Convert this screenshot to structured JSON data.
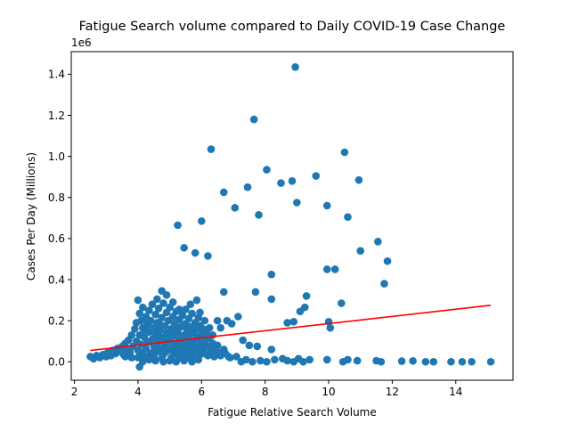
{
  "chart_data": {
    "type": "scatter",
    "title": "Fatigue Search volume compared to Daily COVID-19 Case Change",
    "xlabel": "Fatigue Relative Search Volume",
    "ylabel": "Cases Per Day (Millions)",
    "y_offset_label": "1e6",
    "xlim": [
      1.9,
      15.8
    ],
    "ylim": [
      -0.09,
      1.51
    ],
    "x_ticks": [
      2,
      4,
      6,
      8,
      10,
      12,
      14
    ],
    "x_tick_labels": [
      "2",
      "4",
      "6",
      "8",
      "10",
      "12",
      "14"
    ],
    "y_ticks": [
      0.0,
      0.2,
      0.4,
      0.6,
      0.8,
      1.0,
      1.2,
      1.4
    ],
    "y_tick_labels": [
      "0.0",
      "0.2",
      "0.4",
      "0.6",
      "0.8",
      "1.0",
      "1.2",
      "1.4"
    ],
    "grid": false,
    "legend": "none",
    "colors": {
      "points": "#1f77b4",
      "trend": "#ff0000",
      "axes": "#000000"
    },
    "trend_line": {
      "x": [
        2.5,
        15.1
      ],
      "y": [
        0.055,
        0.275
      ]
    },
    "points": [
      [
        8.95,
        1.435
      ],
      [
        7.65,
        1.18
      ],
      [
        6.3,
        1.035
      ],
      [
        10.5,
        1.02
      ],
      [
        8.05,
        0.935
      ],
      [
        9.6,
        0.905
      ],
      [
        10.95,
        0.885
      ],
      [
        8.5,
        0.87
      ],
      [
        8.85,
        0.88
      ],
      [
        7.45,
        0.85
      ],
      [
        6.7,
        0.825
      ],
      [
        9.0,
        0.775
      ],
      [
        7.05,
        0.75
      ],
      [
        9.95,
        0.76
      ],
      [
        7.8,
        0.715
      ],
      [
        10.6,
        0.705
      ],
      [
        6.0,
        0.685
      ],
      [
        5.25,
        0.665
      ],
      [
        11.55,
        0.585
      ],
      [
        5.45,
        0.555
      ],
      [
        11.0,
        0.54
      ],
      [
        5.8,
        0.53
      ],
      [
        6.2,
        0.515
      ],
      [
        11.85,
        0.49
      ],
      [
        9.95,
        0.45
      ],
      [
        10.2,
        0.45
      ],
      [
        8.2,
        0.425
      ],
      [
        11.75,
        0.38
      ],
      [
        9.3,
        0.32
      ],
      [
        6.7,
        0.34
      ],
      [
        7.7,
        0.34
      ],
      [
        8.2,
        0.305
      ],
      [
        10.4,
        0.285
      ],
      [
        9.1,
        0.245
      ],
      [
        9.25,
        0.265
      ],
      [
        8.9,
        0.195
      ],
      [
        8.7,
        0.19
      ],
      [
        10.0,
        0.195
      ],
      [
        10.05,
        0.165
      ],
      [
        7.15,
        0.22
      ],
      [
        6.8,
        0.2
      ],
      [
        6.95,
        0.185
      ],
      [
        7.3,
        0.105
      ],
      [
        7.5,
        0.08
      ],
      [
        7.75,
        0.075
      ],
      [
        8.2,
        0.06
      ],
      [
        11.5,
        0.005
      ],
      [
        11.65,
        0.0
      ],
      [
        12.3,
        0.003
      ],
      [
        12.65,
        0.004
      ],
      [
        13.05,
        0.0
      ],
      [
        13.3,
        0.0
      ],
      [
        13.85,
        0.0
      ],
      [
        14.2,
        0.0
      ],
      [
        14.5,
        0.0
      ],
      [
        15.1,
        0.0
      ],
      [
        10.9,
        0.005
      ],
      [
        10.6,
        0.01
      ],
      [
        10.45,
        0.0
      ],
      [
        9.95,
        0.01
      ],
      [
        9.4,
        0.01
      ],
      [
        9.2,
        0.0
      ],
      [
        9.05,
        0.015
      ],
      [
        8.9,
        0.0
      ],
      [
        8.7,
        0.005
      ],
      [
        8.55,
        0.015
      ],
      [
        8.3,
        0.01
      ],
      [
        8.05,
        0.0
      ],
      [
        7.85,
        0.005
      ],
      [
        7.6,
        0.0
      ],
      [
        7.4,
        0.01
      ],
      [
        7.25,
        0.0
      ],
      [
        7.1,
        0.025
      ],
      [
        6.9,
        0.02
      ],
      [
        6.6,
        0.03
      ],
      [
        6.4,
        0.025
      ],
      [
        6.2,
        0.03
      ],
      [
        5.95,
        0.035
      ],
      [
        5.7,
        0.04
      ],
      [
        5.5,
        0.03
      ],
      [
        4.0,
        0.3
      ],
      [
        4.6,
        0.305
      ],
      [
        4.75,
        0.345
      ],
      [
        4.9,
        0.325
      ],
      [
        5.1,
        0.29
      ],
      [
        5.3,
        0.255
      ],
      [
        5.5,
        0.255
      ],
      [
        5.65,
        0.28
      ],
      [
        5.85,
        0.3
      ],
      [
        5.95,
        0.24
      ],
      [
        6.1,
        0.2
      ],
      [
        6.25,
        0.165
      ],
      [
        6.5,
        0.2
      ],
      [
        6.6,
        0.165
      ],
      [
        6.35,
        0.13
      ],
      [
        6.15,
        0.11
      ],
      [
        6.5,
        0.08
      ],
      [
        6.7,
        0.06
      ],
      [
        4.05,
        -0.025
      ],
      [
        4.15,
        0.0
      ],
      [
        4.35,
        0.01
      ],
      [
        4.55,
        0.005
      ],
      [
        4.8,
        0.0
      ],
      [
        5.0,
        0.005
      ],
      [
        5.2,
        0.0
      ],
      [
        5.45,
        0.005
      ],
      [
        5.7,
        0.0
      ],
      [
        5.9,
        0.01
      ],
      [
        2.5,
        0.025
      ],
      [
        2.6,
        0.015
      ],
      [
        2.7,
        0.03
      ],
      [
        2.8,
        0.02
      ],
      [
        2.9,
        0.035
      ],
      [
        3.0,
        0.025
      ],
      [
        3.05,
        0.045
      ],
      [
        3.15,
        0.03
      ],
      [
        3.2,
        0.055
      ],
      [
        3.3,
        0.04
      ],
      [
        3.35,
        0.065
      ],
      [
        3.45,
        0.05
      ],
      [
        3.5,
        0.075
      ],
      [
        3.55,
        0.035
      ],
      [
        3.6,
        0.09
      ],
      [
        3.65,
        0.06
      ],
      [
        3.7,
        0.105
      ],
      [
        3.75,
        0.045
      ],
      [
        3.8,
        0.13
      ],
      [
        3.85,
        0.075
      ],
      [
        3.9,
        0.16
      ],
      [
        3.95,
        0.1
      ],
      [
        3.95,
        0.19
      ],
      [
        4.0,
        0.055
      ],
      [
        4.05,
        0.235
      ],
      [
        4.05,
        0.13
      ],
      [
        4.1,
        0.2
      ],
      [
        4.1,
        0.085
      ],
      [
        4.15,
        0.265
      ],
      [
        4.15,
        0.165
      ],
      [
        4.2,
        0.03
      ],
      [
        4.2,
        0.12
      ],
      [
        4.25,
        0.22
      ],
      [
        4.25,
        0.065
      ],
      [
        4.3,
        0.18
      ],
      [
        4.3,
        0.095
      ],
      [
        4.35,
        0.25
      ],
      [
        4.35,
        0.145
      ],
      [
        4.4,
        0.04
      ],
      [
        4.4,
        0.2
      ],
      [
        4.45,
        0.11
      ],
      [
        4.45,
        0.28
      ],
      [
        4.5,
        0.165
      ],
      [
        4.5,
        0.075
      ],
      [
        4.55,
        0.23
      ],
      [
        4.55,
        0.13
      ],
      [
        4.6,
        0.05
      ],
      [
        4.6,
        0.19
      ],
      [
        4.65,
        0.1
      ],
      [
        4.65,
        0.26
      ],
      [
        4.7,
        0.155
      ],
      [
        4.7,
        0.065
      ],
      [
        4.75,
        0.215
      ],
      [
        4.75,
        0.12
      ],
      [
        4.8,
        0.035
      ],
      [
        4.8,
        0.285
      ],
      [
        4.85,
        0.175
      ],
      [
        4.85,
        0.085
      ],
      [
        4.9,
        0.24
      ],
      [
        4.9,
        0.14
      ],
      [
        4.95,
        0.055
      ],
      [
        4.95,
        0.2
      ],
      [
        5.0,
        0.105
      ],
      [
        5.0,
        0.265
      ],
      [
        5.05,
        0.16
      ],
      [
        5.05,
        0.07
      ],
      [
        5.1,
        0.22
      ],
      [
        5.1,
        0.125
      ],
      [
        5.15,
        0.04
      ],
      [
        5.15,
        0.185
      ],
      [
        5.2,
        0.09
      ],
      [
        5.2,
        0.245
      ],
      [
        5.25,
        0.145
      ],
      [
        5.25,
        0.06
      ],
      [
        5.3,
        0.205
      ],
      [
        5.3,
        0.11
      ],
      [
        5.35,
        0.03
      ],
      [
        5.35,
        0.17
      ],
      [
        5.4,
        0.08
      ],
      [
        5.4,
        0.225
      ],
      [
        5.45,
        0.13
      ],
      [
        5.45,
        0.05
      ],
      [
        5.5,
        0.185
      ],
      [
        5.5,
        0.1
      ],
      [
        5.55,
        0.155
      ],
      [
        5.55,
        0.065
      ],
      [
        5.6,
        0.21
      ],
      [
        5.6,
        0.12
      ],
      [
        5.65,
        0.04
      ],
      [
        5.65,
        0.17
      ],
      [
        5.7,
        0.09
      ],
      [
        5.7,
        0.235
      ],
      [
        5.75,
        0.14
      ],
      [
        5.75,
        0.055
      ],
      [
        5.8,
        0.19
      ],
      [
        5.8,
        0.105
      ],
      [
        5.85,
        0.16
      ],
      [
        5.85,
        0.07
      ],
      [
        5.9,
        0.215
      ],
      [
        5.9,
        0.12
      ],
      [
        5.95,
        0.045
      ],
      [
        5.95,
        0.175
      ],
      [
        6.0,
        0.09
      ],
      [
        6.0,
        0.135
      ],
      [
        6.05,
        0.06
      ],
      [
        6.05,
        0.16
      ],
      [
        6.1,
        0.1
      ],
      [
        6.1,
        0.04
      ],
      [
        6.15,
        0.145
      ],
      [
        6.2,
        0.075
      ],
      [
        6.25,
        0.12
      ],
      [
        6.3,
        0.05
      ],
      [
        6.35,
        0.09
      ],
      [
        6.4,
        0.06
      ],
      [
        6.45,
        0.035
      ],
      [
        6.55,
        0.045
      ],
      [
        6.75,
        0.04
      ],
      [
        6.85,
        0.025
      ],
      [
        3.6,
        0.025
      ],
      [
        3.8,
        0.02
      ],
      [
        4.0,
        0.02
      ],
      [
        4.25,
        0.02
      ],
      [
        4.5,
        0.025
      ],
      [
        4.75,
        0.02
      ],
      [
        5.05,
        0.02
      ],
      [
        5.3,
        0.02
      ],
      [
        5.6,
        0.02
      ],
      [
        5.85,
        0.02
      ],
      [
        4.1,
        0.045
      ],
      [
        4.45,
        0.045
      ],
      [
        4.85,
        0.045
      ],
      [
        5.25,
        0.04
      ],
      [
        5.65,
        0.03
      ],
      [
        4.2,
        0.15
      ],
      [
        4.6,
        0.14
      ],
      [
        4.95,
        0.13
      ],
      [
        5.35,
        0.12
      ],
      [
        4.3,
        0.2
      ],
      [
        4.7,
        0.18
      ],
      [
        5.15,
        0.16
      ],
      [
        5.55,
        0.14
      ],
      [
        4.4,
        0.1
      ],
      [
        4.8,
        0.1
      ],
      [
        5.2,
        0.09
      ],
      [
        5.6,
        0.08
      ],
      [
        4.55,
        0.07
      ],
      [
        4.9,
        0.06
      ],
      [
        5.4,
        0.05
      ]
    ]
  }
}
